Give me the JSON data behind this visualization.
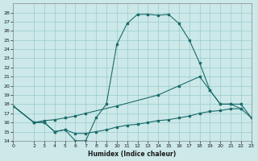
{
  "bg_color": "#cce8e8",
  "grid_color": "#99cccc",
  "line_color": "#1a6b6b",
  "xlabel": "Humidex (Indice chaleur)",
  "xlim": [
    0,
    23
  ],
  "ylim": [
    14,
    29
  ],
  "xticks": [
    0,
    2,
    3,
    4,
    5,
    6,
    7,
    8,
    9,
    10,
    11,
    12,
    13,
    14,
    15,
    16,
    17,
    18,
    19,
    20,
    21,
    22,
    23
  ],
  "yticks": [
    14,
    15,
    16,
    17,
    18,
    19,
    20,
    21,
    22,
    23,
    24,
    25,
    26,
    27,
    28
  ],
  "curve1_x": [
    0,
    2,
    3,
    4,
    5,
    6,
    7,
    8,
    9,
    10,
    11,
    12,
    13,
    14,
    15,
    16,
    17,
    18,
    19,
    20,
    21,
    22
  ],
  "curve1_y": [
    17.8,
    16.0,
    16.0,
    15.0,
    15.2,
    14.0,
    14.0,
    16.5,
    18.0,
    24.5,
    26.8,
    27.8,
    27.8,
    27.7,
    27.8,
    26.8,
    25.0,
    22.5,
    19.5,
    18.0,
    18.0,
    17.5
  ],
  "curve2_x": [
    0,
    2,
    3,
    4,
    5,
    6,
    7,
    10,
    14,
    16,
    18,
    19,
    20,
    21,
    22,
    23
  ],
  "curve2_y": [
    17.8,
    16.0,
    16.2,
    16.3,
    16.5,
    16.7,
    17.0,
    17.8,
    19.0,
    20.0,
    21.0,
    19.5,
    18.0,
    18.0,
    18.0,
    16.5
  ],
  "curve3_x": [
    0,
    2,
    3,
    4,
    5,
    6,
    7,
    8,
    9,
    10,
    11,
    12,
    13,
    14,
    15,
    16,
    17,
    18,
    19,
    20,
    21,
    22,
    23
  ],
  "curve3_y": [
    17.8,
    16.0,
    16.0,
    15.0,
    15.2,
    14.8,
    14.8,
    15.0,
    15.2,
    15.5,
    15.7,
    15.8,
    16.0,
    16.2,
    16.3,
    16.5,
    16.7,
    17.0,
    17.2,
    17.3,
    17.5,
    17.5,
    16.5
  ]
}
